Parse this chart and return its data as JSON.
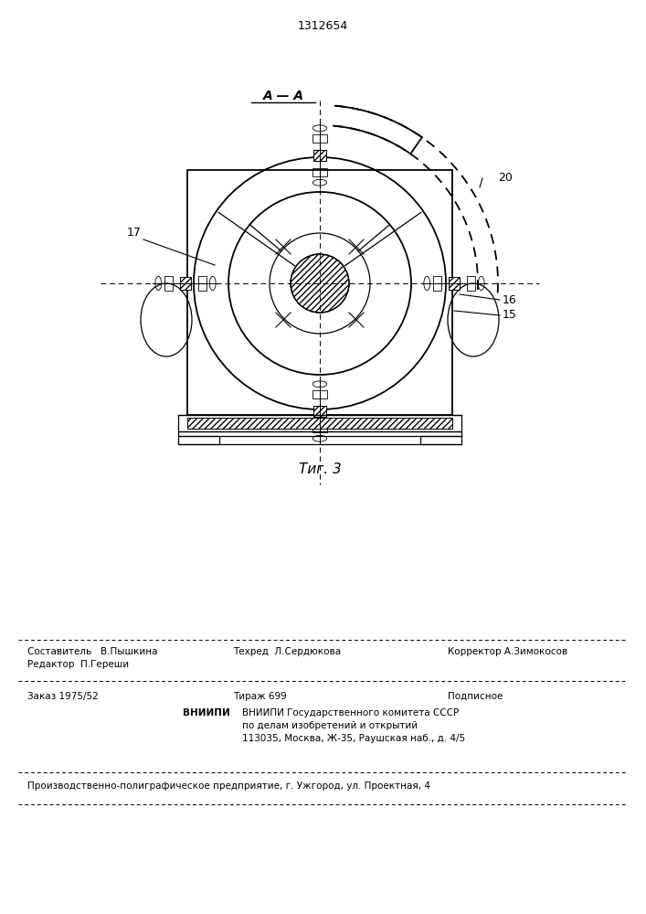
{
  "patent_number": "1312654",
  "fig_label": "Τиг. 3",
  "section_label": "A — A",
  "label_17": "17",
  "label_20": "20",
  "label_15": "15",
  "label_16": "16",
  "bg_color": "#ffffff",
  "line_color": "#000000",
  "footer_text1": "Редактор  П.Гереши",
  "footer_text2": "Составитель   В.Пышкина",
  "footer_text3": "Техред  Л.Сердюкова",
  "footer_text4": "Корректор А.Зимокосов",
  "footer_text5": "Заказ 1975/52",
  "footer_text6": "Тираж 699",
  "footer_text7": "Подписное",
  "footer_text8": "ВНИИПИ Государственного комитета СССР",
  "footer_text9": "по делам изобретений и открытий",
  "footer_text10": "113035, Москва, Ж-35, Раушская наб., д. 4/5",
  "footer_text11": "Производственно-полиграфическое предприятие, г. Ужгород, ул. Проектная, 4"
}
